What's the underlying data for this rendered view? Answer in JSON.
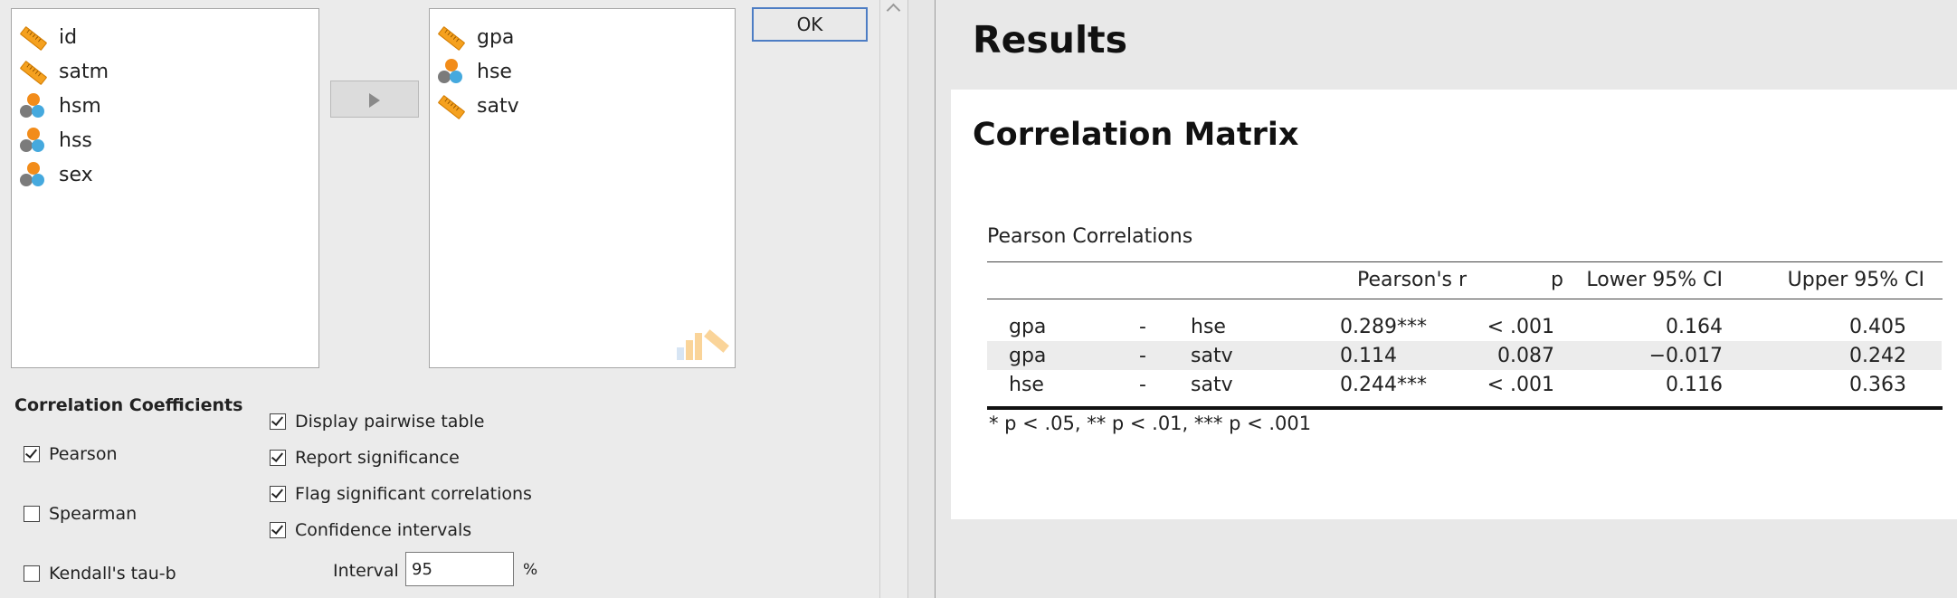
{
  "dialog": {
    "available_vars": [
      {
        "name": "id",
        "icon": "ruler-icon"
      },
      {
        "name": "satm",
        "icon": "ruler-icon"
      },
      {
        "name": "hsm",
        "icon": "nominal-icon"
      },
      {
        "name": "hss",
        "icon": "nominal-icon"
      },
      {
        "name": "sex",
        "icon": "nominal-icon"
      }
    ],
    "selected_vars": [
      {
        "name": "gpa",
        "icon": "ruler-icon"
      },
      {
        "name": "hse",
        "icon": "nominal-icon"
      },
      {
        "name": "satv",
        "icon": "ruler-icon"
      }
    ],
    "ok_label": "OK",
    "coef_title": "Correlation Coefficients",
    "coefficients": [
      {
        "label": "Pearson",
        "checked": true
      },
      {
        "label": "Spearman",
        "checked": false
      },
      {
        "label": "Kendall's tau-b",
        "checked": false
      }
    ],
    "options": [
      {
        "label": "Display pairwise table",
        "checked": true
      },
      {
        "label": "Report significance",
        "checked": true
      },
      {
        "label": "Flag significant correlations",
        "checked": true
      },
      {
        "label": "Confidence intervals",
        "checked": true
      }
    ],
    "interval_label": "Interval",
    "interval_value": "95",
    "interval_unit": "%"
  },
  "results": {
    "title": "Results",
    "section_title": "Correlation Matrix",
    "table_title": "Pearson Correlations",
    "columns": [
      "Pearson's r",
      "p",
      "Lower 95% CI",
      "Upper 95% CI"
    ],
    "rows": [
      {
        "v1": "gpa",
        "sep": "-",
        "v2": "hse",
        "r": "0.289***",
        "p": "< .001",
        "lower": "0.164",
        "upper": "0.405"
      },
      {
        "v1": "gpa",
        "sep": "-",
        "v2": "satv",
        "r": "0.114",
        "p": "0.087",
        "lower": "−0.017",
        "upper": "0.242"
      },
      {
        "v1": "hse",
        "sep": "-",
        "v2": "satv",
        "r": "0.244***",
        "p": "< .001",
        "lower": "0.116",
        "upper": "0.363"
      }
    ],
    "footnote": "* p < .05, ** p < .01, *** p < .001"
  },
  "colors": {
    "accent": "#4d7dc4",
    "ruler": "#f5a11f",
    "nominal_orange": "#f28c1a",
    "nominal_blue": "#45a9de"
  }
}
